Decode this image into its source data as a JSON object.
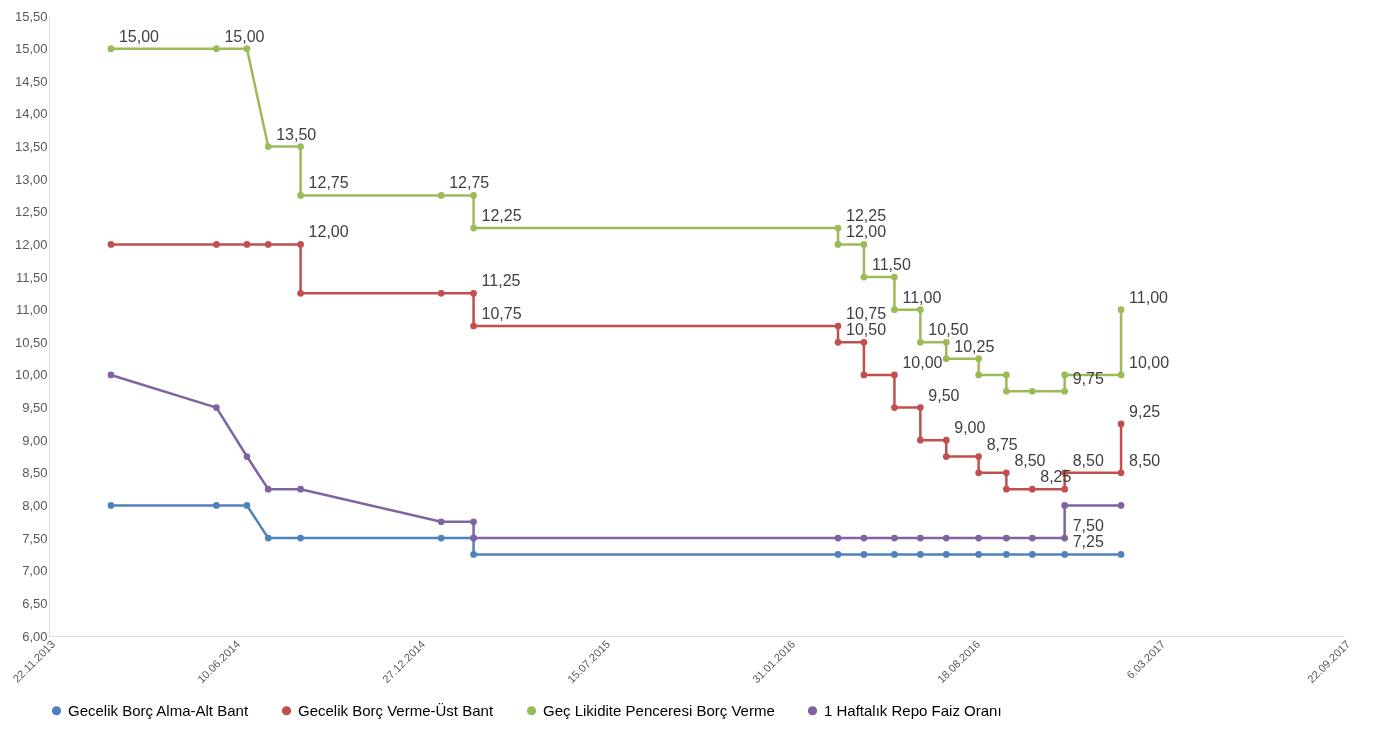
{
  "chart_data": {
    "type": "line",
    "legend": "bottom",
    "marker": "circle",
    "line_style": "solid",
    "xlim": [
      "2013-11-22",
      "2017-09-22"
    ],
    "xticks": [
      {
        "value": "2013-11-22",
        "label": "22.11.2013"
      },
      {
        "value": "2014-06-10",
        "label": "10.06.2014"
      },
      {
        "value": "2014-12-27",
        "label": "27.12.2014"
      },
      {
        "value": "2015-07-15",
        "label": "15.07.2015"
      },
      {
        "value": "2016-01-31",
        "label": "31.01.2016"
      },
      {
        "value": "2016-08-18",
        "label": "18.08.2016"
      },
      {
        "value": "2017-03-06",
        "label": "6.03.2017"
      },
      {
        "value": "2017-09-22",
        "label": "22.09.2017"
      }
    ],
    "ylim": [
      6,
      15.5
    ],
    "yticks": [
      {
        "value": 6,
        "label": "6,00"
      },
      {
        "value": 6.5,
        "label": "6,50"
      },
      {
        "value": 7,
        "label": "7,00"
      },
      {
        "value": 7.5,
        "label": "7,50"
      },
      {
        "value": 8,
        "label": "8,00"
      },
      {
        "value": 8.5,
        "label": "8,50"
      },
      {
        "value": 9,
        "label": "9,00"
      },
      {
        "value": 9.5,
        "label": "9,50"
      },
      {
        "value": 10,
        "label": "10,00"
      },
      {
        "value": 10.5,
        "label": "10,50"
      },
      {
        "value": 11,
        "label": "11,00"
      },
      {
        "value": 11.5,
        "label": "11,50"
      },
      {
        "value": 12,
        "label": "12,00"
      },
      {
        "value": 12.5,
        "label": "12,50"
      },
      {
        "value": 13,
        "label": "13,00"
      },
      {
        "value": 13.5,
        "label": "13,50"
      },
      {
        "value": 14,
        "label": "14,00"
      },
      {
        "value": 14.5,
        "label": "14,50"
      },
      {
        "value": 15,
        "label": "15,00"
      },
      {
        "value": 15.5,
        "label": "15,50"
      }
    ],
    "series": [
      {
        "name": "Gecelik Borç Alma-Alt Bant",
        "color": "#4f81bd",
        "x": [
          "2014-01-28",
          "2014-05-22",
          "2014-06-24",
          "2014-07-17",
          "2014-08-21",
          "2015-01-20",
          "2015-02-24",
          "2015-02-24",
          "2016-03-24",
          "2016-04-21",
          "2016-05-24",
          "2016-06-21",
          "2016-07-19",
          "2016-08-23",
          "2016-09-22",
          "2016-10-20",
          "2016-11-24",
          "2017-01-24"
        ],
        "values": [
          8,
          8,
          8,
          7.5,
          7.5,
          7.5,
          7.5,
          7.25,
          7.25,
          7.25,
          7.25,
          7.25,
          7.25,
          7.25,
          7.25,
          7.25,
          7.25,
          7.25
        ],
        "value_labels": [
          null,
          null,
          null,
          null,
          null,
          null,
          null,
          null,
          null,
          null,
          null,
          null,
          null,
          null,
          null,
          null,
          "7,25",
          null
        ]
      },
      {
        "name": "Gecelik Borç Verme-Üst Bant",
        "color": "#c0504d",
        "x": [
          "2014-01-28",
          "2014-05-22",
          "2014-06-24",
          "2014-07-17",
          "2014-08-21",
          "2014-08-21",
          "2015-01-20",
          "2015-02-24",
          "2015-02-24",
          "2016-03-24",
          "2016-03-24",
          "2016-04-21",
          "2016-04-21",
          "2016-05-24",
          "2016-05-24",
          "2016-06-21",
          "2016-06-21",
          "2016-07-19",
          "2016-07-19",
          "2016-08-23",
          "2016-08-23",
          "2016-09-22",
          "2016-09-22",
          "2016-10-20",
          "2016-11-24",
          "2016-11-24",
          "2017-01-24",
          "2017-01-24"
        ],
        "values": [
          12,
          12,
          12,
          12,
          12,
          11.25,
          11.25,
          11.25,
          10.75,
          10.75,
          10.5,
          10.5,
          10,
          10,
          9.5,
          9.5,
          9,
          9,
          8.75,
          8.75,
          8.5,
          8.5,
          8.25,
          8.25,
          8.25,
          8.5,
          8.5,
          9.25
        ],
        "value_labels": [
          null,
          null,
          null,
          null,
          "12,00",
          null,
          null,
          "11,25",
          "10,75",
          "10,75",
          "10,50",
          null,
          null,
          "10,00",
          null,
          "9,50",
          null,
          "9,00",
          null,
          "8,75",
          null,
          "8,50",
          null,
          "8,25",
          null,
          "8,50",
          "8,50",
          "9,25"
        ]
      },
      {
        "name": "Geç Likidite Penceresi Borç Verme",
        "color": "#9bbb59",
        "x": [
          "2014-01-28",
          "2014-05-22",
          "2014-06-24",
          "2014-07-17",
          "2014-08-21",
          "2014-08-21",
          "2015-01-20",
          "2015-02-24",
          "2015-02-24",
          "2016-03-24",
          "2016-03-24",
          "2016-04-21",
          "2016-04-21",
          "2016-05-24",
          "2016-05-24",
          "2016-06-21",
          "2016-06-21",
          "2016-07-19",
          "2016-07-19",
          "2016-08-23",
          "2016-08-23",
          "2016-09-22",
          "2016-09-22",
          "2016-10-20",
          "2016-11-24",
          "2016-11-24",
          "2017-01-24",
          "2017-01-24"
        ],
        "values": [
          15,
          15,
          15,
          13.5,
          13.5,
          12.75,
          12.75,
          12.75,
          12.25,
          12.25,
          12,
          12,
          11.5,
          11.5,
          11,
          11,
          10.5,
          10.5,
          10.25,
          10.25,
          10,
          10,
          9.75,
          9.75,
          9.75,
          10,
          10,
          11
        ],
        "value_labels": [
          "15,00",
          "15,00",
          null,
          "13,50",
          null,
          "12,75",
          "12,75",
          null,
          "12,25",
          "12,25",
          "12,00",
          null,
          "11,50",
          null,
          "11,00",
          null,
          "10,50",
          null,
          "10,25",
          null,
          null,
          null,
          null,
          null,
          "9,75",
          null,
          "10,00",
          "11,00"
        ]
      },
      {
        "name": "1 Haftalık Repo Faiz Oranı",
        "color": "#8064a2",
        "x": [
          "2014-01-28",
          "2014-05-22",
          "2014-06-24",
          "2014-07-17",
          "2014-08-21",
          "2015-01-20",
          "2015-02-24",
          "2015-02-24",
          "2016-03-24",
          "2016-04-21",
          "2016-05-24",
          "2016-06-21",
          "2016-07-19",
          "2016-08-23",
          "2016-09-22",
          "2016-10-20",
          "2016-11-24",
          "2016-11-24",
          "2017-01-24"
        ],
        "values": [
          10,
          9.5,
          8.75,
          8.25,
          8.25,
          7.75,
          7.75,
          7.5,
          7.5,
          7.5,
          7.5,
          7.5,
          7.5,
          7.5,
          7.5,
          7.5,
          7.5,
          8,
          8
        ],
        "value_labels": [
          null,
          null,
          null,
          null,
          null,
          null,
          null,
          null,
          null,
          null,
          null,
          null,
          null,
          null,
          null,
          null,
          "7,50",
          null,
          null
        ]
      }
    ]
  }
}
